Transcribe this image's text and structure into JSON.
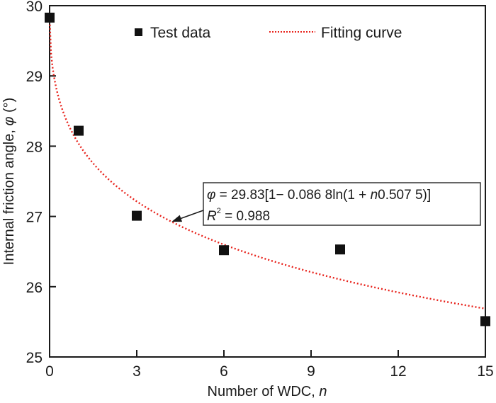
{
  "chart_data": {
    "type": "scatter",
    "title": "",
    "xlabel": "Number of WDC, ",
    "xlabel_var": "n",
    "ylabel": "Internal friction angle, ",
    "ylabel_var": "φ",
    "ylabel_unit": " (°)",
    "xlim": [
      0,
      15
    ],
    "ylim": [
      25,
      30
    ],
    "xticks": [
      0,
      3,
      6,
      9,
      12,
      15
    ],
    "yticks": [
      25,
      26,
      27,
      28,
      29,
      30
    ],
    "grid": false,
    "legend_position": "top",
    "series": [
      {
        "name": "Test data",
        "kind": "scatter",
        "marker": "square",
        "color": "#111111",
        "x": [
          0,
          1,
          3,
          6,
          10,
          15
        ],
        "y": [
          29.83,
          28.22,
          27.01,
          26.52,
          26.53,
          25.51
        ]
      },
      {
        "name": "Fitting curve",
        "kind": "line",
        "style": "dotted",
        "color": "#e8211a",
        "formula": {
          "a": 29.83,
          "b": 0.0868,
          "c": 0.5075
        }
      }
    ],
    "annotation": {
      "equation_lhs": "φ",
      "equation_rhs": " = 29.83[1− 0.086 8ln(1 + ",
      "equation_var": "n",
      "equation_tail": "0.507 5)]",
      "r2_label": "R",
      "r2_sup": "2",
      "r2_value": " = 0.988",
      "arrow_target_x": 4.2
    }
  }
}
